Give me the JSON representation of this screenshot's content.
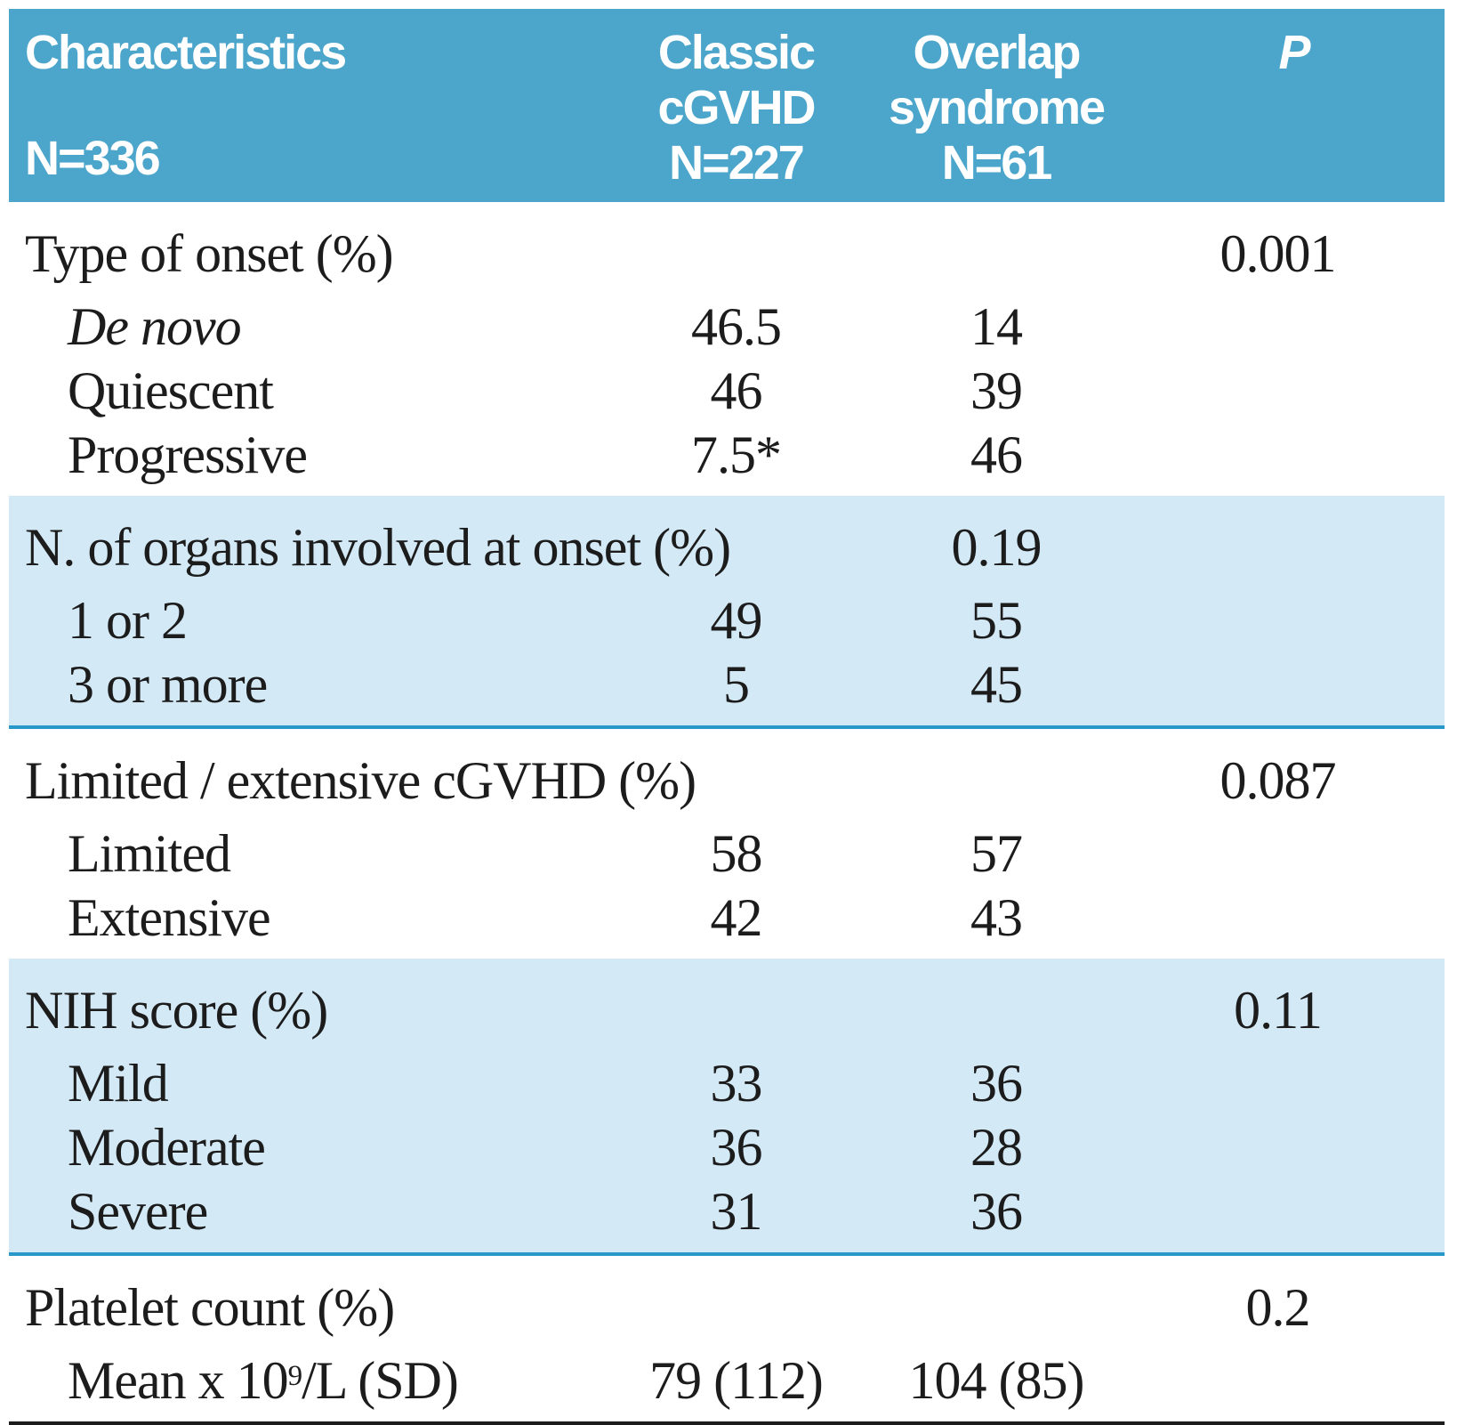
{
  "table": {
    "title_semantic": "Comparison of classic cGVHD and overlap syndrome characteristics",
    "header": {
      "col1": {
        "title": "Characteristics",
        "n": "N=336"
      },
      "col2": {
        "line1": "Classic",
        "line2": "cGVHD",
        "n": "N=227"
      },
      "col3": {
        "line1": "Overlap",
        "line2": "syndrome",
        "n": "N=61"
      },
      "p_label": "P"
    },
    "sections": [
      {
        "label": "Type of onset (%)",
        "p_value": "0.001",
        "p_location": "p-column",
        "shaded": false,
        "rows": [
          {
            "label": "De novo",
            "italic": true,
            "values": [
              "46.5",
              "14"
            ]
          },
          {
            "label": "Quiescent",
            "values": [
              "46",
              "39"
            ]
          },
          {
            "label": "Progressive",
            "values": [
              "7.5*",
              "46"
            ]
          }
        ]
      },
      {
        "label": "N. of organs involved at onset (%)",
        "p_value": "0.19",
        "p_location": "overlap-column",
        "shaded": true,
        "rows": [
          {
            "label": "1 or 2",
            "values": [
              "49",
              "55"
            ]
          },
          {
            "label": "3 or more",
            "values": [
              "5",
              "45"
            ]
          }
        ]
      },
      {
        "label": "Limited / extensive cGVHD (%)",
        "p_value": "0.087",
        "p_location": "p-column",
        "shaded": false,
        "rows": [
          {
            "label": "Limited",
            "values": [
              "58",
              "57"
            ]
          },
          {
            "label": "Extensive",
            "values": [
              "42",
              "43"
            ]
          }
        ]
      },
      {
        "label": "NIH score (%)",
        "p_value": "0.11",
        "p_location": "p-column",
        "shaded": true,
        "rows": [
          {
            "label": "Mild",
            "values": [
              "33",
              "36"
            ]
          },
          {
            "label": "Moderate",
            "values": [
              "36",
              "28"
            ]
          },
          {
            "label": "Severe",
            "values": [
              "31",
              "36"
            ]
          }
        ]
      },
      {
        "label": "Platelet count (%)",
        "p_value": "0.2",
        "p_location": "p-column",
        "shaded": false,
        "rows": [
          {
            "label_main": "Mean x 10",
            "label_sup": "9",
            "label_tail": "/L (SD)",
            "values": [
              "79 (112)",
              "104 (85)"
            ]
          }
        ]
      }
    ],
    "footnote_marker": "*"
  },
  "colors": {
    "header_bg": "#4ca5cb",
    "header_text": "#ffffff",
    "shaded_row_bg": "#d3e9f6",
    "separator_line": "#2798c8",
    "bottom_rule": "#1c1c1c",
    "body_text": "#1c1c1c"
  }
}
